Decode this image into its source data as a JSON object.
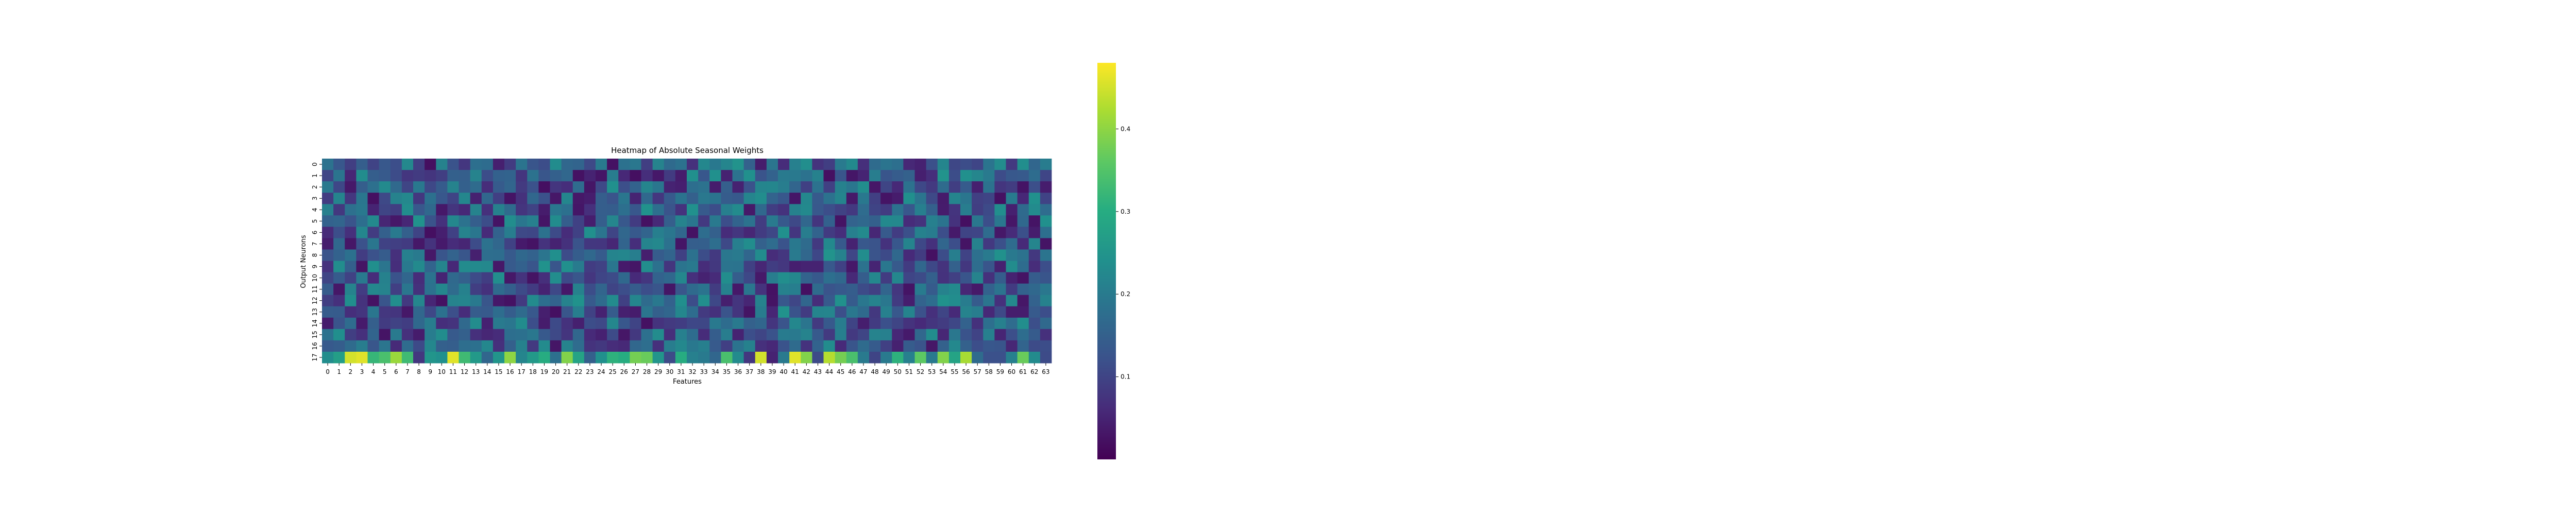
{
  "chart_data": {
    "type": "heatmap",
    "title": "Heatmap of Absolute Seasonal Weights",
    "xlabel": "Features",
    "ylabel": "Output Neurons",
    "x_tick_labels": [
      "0",
      "1",
      "2",
      "3",
      "4",
      "5",
      "6",
      "7",
      "8",
      "9",
      "10",
      "11",
      "12",
      "13",
      "14",
      "15",
      "16",
      "17",
      "18",
      "19",
      "20",
      "21",
      "22",
      "23",
      "24",
      "25",
      "26",
      "27",
      "28",
      "29",
      "30",
      "31",
      "32",
      "33",
      "34",
      "35",
      "36",
      "37",
      "38",
      "39",
      "40",
      "41",
      "42",
      "43",
      "44",
      "45",
      "46",
      "47",
      "48",
      "49",
      "50",
      "51",
      "52",
      "53",
      "54",
      "55",
      "56",
      "57",
      "58",
      "59",
      "60",
      "61",
      "62",
      "63"
    ],
    "y_tick_labels": [
      "0",
      "1",
      "2",
      "3",
      "4",
      "5",
      "6",
      "7",
      "8",
      "9",
      "10",
      "11",
      "12",
      "13",
      "14",
      "15",
      "16",
      "17"
    ],
    "colorscale": "viridis",
    "colorbar": {
      "min": 0.0,
      "max": 0.48,
      "ticks": [
        0.1,
        0.2,
        0.3,
        0.4
      ],
      "tick_labels": [
        "0.1",
        "0.2",
        "0.3",
        "0.4"
      ]
    },
    "values": [
      [
        0.185,
        0.131,
        0.09,
        0.145,
        0.098,
        0.133,
        0.116,
        0.226,
        0.092,
        0.02,
        0.214,
        0.124,
        0.078,
        0.179,
        0.173,
        0.045,
        0.086,
        0.188,
        0.127,
        0.114,
        0.233,
        0.163,
        0.157,
        0.108,
        0.199,
        0.025,
        0.183,
        0.194,
        0.091,
        0.215,
        0.168,
        0.182,
        0.069,
        0.224,
        0.196,
        0.219,
        0.246,
        0.151,
        0.04,
        0.19,
        0.063,
        0.21,
        0.236,
        0.073,
        0.09,
        0.2,
        0.227,
        0.067,
        0.17,
        0.188,
        0.179,
        0.056,
        0.047,
        0.118,
        0.219,
        0.104,
        0.114,
        0.102,
        0.188,
        0.232,
        0.083,
        0.237,
        0.161,
        0.202
      ],
      [
        0.102,
        0.188,
        0.054,
        0.233,
        0.145,
        0.138,
        0.112,
        0.078,
        0.086,
        0.077,
        0.091,
        0.149,
        0.147,
        0.216,
        0.114,
        0.152,
        0.156,
        0.076,
        0.185,
        0.13,
        0.149,
        0.163,
        0.025,
        0.049,
        0.029,
        0.204,
        0.057,
        0.021,
        0.065,
        0.034,
        0.086,
        0.04,
        0.241,
        0.131,
        0.241,
        0.048,
        0.184,
        0.241,
        0.125,
        0.153,
        0.199,
        0.198,
        0.184,
        0.212,
        0.022,
        0.128,
        0.031,
        0.051,
        0.204,
        0.127,
        0.142,
        0.151,
        0.044,
        0.066,
        0.247,
        0.113,
        0.24,
        0.221,
        0.2,
        0.112,
        0.133,
        0.138,
        0.173,
        0.102
      ],
      [
        0.195,
        0.105,
        0.035,
        0.146,
        0.18,
        0.228,
        0.166,
        0.101,
        0.196,
        0.106,
        0.14,
        0.216,
        0.15,
        0.17,
        0.064,
        0.139,
        0.159,
        0.084,
        0.122,
        0.021,
        0.077,
        0.066,
        0.172,
        0.03,
        0.107,
        0.241,
        0.117,
        0.154,
        0.219,
        0.191,
        0.05,
        0.044,
        0.177,
        0.185,
        0.039,
        0.147,
        0.048,
        0.121,
        0.22,
        0.222,
        0.204,
        0.159,
        0.094,
        0.184,
        0.093,
        0.213,
        0.191,
        0.237,
        0.032,
        0.101,
        0.057,
        0.185,
        0.106,
        0.083,
        0.17,
        0.09,
        0.139,
        0.045,
        0.185,
        0.076,
        0.087,
        0.028,
        0.117,
        0.041
      ],
      [
        0.087,
        0.218,
        0.079,
        0.192,
        0.022,
        0.108,
        0.214,
        0.226,
        0.08,
        0.181,
        0.132,
        0.1,
        0.224,
        0.046,
        0.163,
        0.092,
        0.028,
        0.07,
        0.163,
        0.121,
        0.032,
        0.222,
        0.033,
        0.041,
        0.145,
        0.126,
        0.192,
        0.05,
        0.165,
        0.078,
        0.137,
        0.187,
        0.149,
        0.195,
        0.186,
        0.142,
        0.135,
        0.22,
        0.235,
        0.155,
        0.131,
        0.031,
        0.224,
        0.137,
        0.185,
        0.217,
        0.035,
        0.196,
        0.093,
        0.028,
        0.039,
        0.239,
        0.189,
        0.107,
        0.038,
        0.22,
        0.191,
        0.093,
        0.099,
        0.023,
        0.201,
        0.057,
        0.242,
        0.098
      ],
      [
        0.211,
        0.081,
        0.18,
        0.196,
        0.051,
        0.101,
        0.09,
        0.234,
        0.133,
        0.165,
        0.034,
        0.076,
        0.057,
        0.216,
        0.069,
        0.212,
        0.17,
        0.076,
        0.097,
        0.039,
        0.192,
        0.181,
        0.031,
        0.068,
        0.146,
        0.143,
        0.179,
        0.131,
        0.245,
        0.179,
        0.125,
        0.071,
        0.242,
        0.137,
        0.114,
        0.208,
        0.23,
        0.035,
        0.164,
        0.089,
        0.072,
        0.213,
        0.227,
        0.134,
        0.116,
        0.096,
        0.082,
        0.172,
        0.099,
        0.086,
        0.184,
        0.131,
        0.208,
        0.149,
        0.039,
        0.075,
        0.205,
        0.09,
        0.109,
        0.237,
        0.045,
        0.169,
        0.23,
        0.172
      ],
      [
        0.154,
        0.159,
        0.125,
        0.177,
        0.227,
        0.053,
        0.033,
        0.055,
        0.245,
        0.123,
        0.07,
        0.224,
        0.184,
        0.146,
        0.114,
        0.027,
        0.234,
        0.191,
        0.211,
        0.029,
        0.233,
        0.145,
        0.095,
        0.042,
        0.145,
        0.221,
        0.133,
        0.086,
        0.023,
        0.058,
        0.147,
        0.215,
        0.191,
        0.082,
        0.198,
        0.116,
        0.156,
        0.185,
        0.087,
        0.2,
        0.136,
        0.107,
        0.162,
        0.077,
        0.152,
        0.027,
        0.155,
        0.164,
        0.15,
        0.227,
        0.226,
        0.062,
        0.074,
        0.21,
        0.187,
        0.072,
        0.021,
        0.193,
        0.115,
        0.195,
        0.032,
        0.164,
        0.028,
        0.241
      ],
      [
        0.061,
        0.116,
        0.069,
        0.222,
        0.087,
        0.149,
        0.2,
        0.15,
        0.1,
        0.021,
        0.044,
        0.095,
        0.216,
        0.192,
        0.061,
        0.153,
        0.205,
        0.107,
        0.104,
        0.184,
        0.111,
        0.063,
        0.095,
        0.241,
        0.189,
        0.101,
        0.162,
        0.136,
        0.158,
        0.209,
        0.192,
        0.162,
        0.025,
        0.175,
        0.15,
        0.062,
        0.078,
        0.055,
        0.085,
        0.104,
        0.24,
        0.078,
        0.205,
        0.156,
        0.086,
        0.066,
        0.211,
        0.228,
        0.055,
        0.137,
        0.088,
        0.118,
        0.213,
        0.203,
        0.115,
        0.036,
        0.1,
        0.102,
        0.172,
        0.033,
        0.061,
        0.118,
        0.041,
        0.179
      ],
      [
        0.041,
        0.163,
        0.032,
        0.122,
        0.192,
        0.096,
        0.092,
        0.086,
        0.033,
        0.073,
        0.037,
        0.063,
        0.053,
        0.112,
        0.185,
        0.163,
        0.097,
        0.037,
        0.026,
        0.074,
        0.048,
        0.07,
        0.125,
        0.08,
        0.078,
        0.055,
        0.158,
        0.066,
        0.218,
        0.226,
        0.183,
        0.029,
        0.145,
        0.148,
        0.176,
        0.108,
        0.209,
        0.234,
        0.151,
        0.172,
        0.123,
        0.196,
        0.17,
        0.082,
        0.227,
        0.138,
        0.048,
        0.134,
        0.126,
        0.072,
        0.131,
        0.218,
        0.106,
        0.07,
        0.16,
        0.115,
        0.027,
        0.214,
        0.083,
        0.118,
        0.172,
        0.059,
        0.219,
        0.028
      ],
      [
        0.126,
        0.154,
        0.181,
        0.088,
        0.121,
        0.141,
        0.069,
        0.211,
        0.199,
        0.033,
        0.128,
        0.155,
        0.13,
        0.045,
        0.176,
        0.175,
        0.138,
        0.164,
        0.153,
        0.189,
        0.238,
        0.112,
        0.143,
        0.165,
        0.14,
        0.218,
        0.222,
        0.206,
        0.043,
        0.141,
        0.158,
        0.094,
        0.183,
        0.113,
        0.082,
        0.194,
        0.2,
        0.161,
        0.233,
        0.064,
        0.078,
        0.2,
        0.163,
        0.105,
        0.246,
        0.214,
        0.103,
        0.235,
        0.125,
        0.109,
        0.165,
        0.06,
        0.087,
        0.023,
        0.114,
        0.207,
        0.098,
        0.18,
        0.2,
        0.243,
        0.198,
        0.185,
        0.081,
        0.188
      ],
      [
        0.072,
        0.235,
        0.148,
        0.027,
        0.238,
        0.19,
        0.066,
        0.197,
        0.229,
        0.158,
        0.218,
        0.057,
        0.231,
        0.229,
        0.226,
        0.033,
        0.138,
        0.152,
        0.128,
        0.245,
        0.127,
        0.241,
        0.201,
        0.088,
        0.097,
        0.192,
        0.037,
        0.03,
        0.234,
        0.183,
        0.076,
        0.188,
        0.198,
        0.064,
        0.081,
        0.188,
        0.187,
        0.094,
        0.055,
        0.089,
        0.079,
        0.044,
        0.05,
        0.05,
        0.134,
        0.095,
        0.034,
        0.185,
        0.051,
        0.193,
        0.137,
        0.085,
        0.162,
        0.106,
        0.074,
        0.151,
        0.08,
        0.175,
        0.127,
        0.046,
        0.233,
        0.173,
        0.064,
        0.116
      ],
      [
        0.101,
        0.14,
        0.096,
        0.198,
        0.063,
        0.212,
        0.123,
        0.161,
        0.064,
        0.187,
        0.051,
        0.166,
        0.15,
        0.11,
        0.089,
        0.237,
        0.033,
        0.073,
        0.027,
        0.067,
        0.234,
        0.109,
        0.13,
        0.078,
        0.102,
        0.111,
        0.165,
        0.06,
        0.078,
        0.154,
        0.164,
        0.224,
        0.069,
        0.048,
        0.061,
        0.234,
        0.143,
        0.106,
        0.035,
        0.205,
        0.236,
        0.223,
        0.155,
        0.136,
        0.178,
        0.164,
        0.058,
        0.144,
        0.223,
        0.087,
        0.224,
        0.102,
        0.111,
        0.149,
        0.072,
        0.093,
        0.128,
        0.216,
        0.07,
        0.144,
        0.048,
        0.027,
        0.142,
        0.127
      ],
      [
        0.141,
        0.032,
        0.216,
        0.088,
        0.223,
        0.216,
        0.092,
        0.192,
        0.07,
        0.185,
        0.223,
        0.17,
        0.213,
        0.09,
        0.07,
        0.17,
        0.148,
        0.11,
        0.085,
        0.049,
        0.106,
        0.034,
        0.214,
        0.113,
        0.159,
        0.099,
        0.115,
        0.141,
        0.116,
        0.127,
        0.03,
        0.129,
        0.168,
        0.187,
        0.087,
        0.212,
        0.034,
        0.192,
        0.073,
        0.025,
        0.213,
        0.206,
        0.022,
        0.171,
        0.125,
        0.135,
        0.144,
        0.11,
        0.093,
        0.159,
        0.079,
        0.028,
        0.201,
        0.139,
        0.214,
        0.228,
        0.055,
        0.035,
        0.154,
        0.188,
        0.086,
        0.154,
        0.165,
        0.194
      ],
      [
        0.091,
        0.068,
        0.239,
        0.074,
        0.025,
        0.128,
        0.236,
        0.083,
        0.221,
        0.054,
        0.023,
        0.215,
        0.219,
        0.198,
        0.13,
        0.034,
        0.024,
        0.084,
        0.23,
        0.177,
        0.155,
        0.215,
        0.245,
        0.137,
        0.171,
        0.23,
        0.094,
        0.222,
        0.17,
        0.196,
        0.153,
        0.238,
        0.113,
        0.237,
        0.106,
        0.043,
        0.076,
        0.053,
        0.214,
        0.027,
        0.131,
        0.103,
        0.16,
        0.064,
        0.138,
        0.243,
        0.139,
        0.193,
        0.215,
        0.194,
        0.086,
        0.042,
        0.155,
        0.175,
        0.244,
        0.234,
        0.203,
        0.14,
        0.189,
        0.068,
        0.226,
        0.032,
        0.154,
        0.214
      ],
      [
        0.142,
        0.14,
        0.065,
        0.076,
        0.191,
        0.079,
        0.076,
        0.033,
        0.163,
        0.106,
        0.182,
        0.117,
        0.062,
        0.142,
        0.137,
        0.174,
        0.143,
        0.17,
        0.134,
        0.043,
        0.022,
        0.129,
        0.206,
        0.097,
        0.048,
        0.141,
        0.045,
        0.039,
        0.189,
        0.15,
        0.161,
        0.224,
        0.173,
        0.084,
        0.07,
        0.126,
        0.077,
        0.027,
        0.202,
        0.054,
        0.245,
        0.123,
        0.085,
        0.218,
        0.22,
        0.117,
        0.194,
        0.168,
        0.081,
        0.211,
        0.133,
        0.218,
        0.121,
        0.069,
        0.101,
        0.059,
        0.216,
        0.205,
        0.057,
        0.108,
        0.041,
        0.041,
        0.138,
        0.116
      ],
      [
        0.039,
        0.125,
        0.172,
        0.037,
        0.147,
        0.086,
        0.097,
        0.089,
        0.164,
        0.204,
        0.065,
        0.073,
        0.166,
        0.232,
        0.047,
        0.199,
        0.192,
        0.233,
        0.115,
        0.039,
        0.109,
        0.071,
        0.045,
        0.113,
        0.108,
        0.223,
        0.132,
        0.1,
        0.023,
        0.073,
        0.084,
        0.089,
        0.105,
        0.104,
        0.197,
        0.173,
        0.199,
        0.151,
        0.16,
        0.077,
        0.125,
        0.223,
        0.189,
        0.084,
        0.135,
        0.205,
        0.099,
        0.042,
        0.085,
        0.119,
        0.101,
        0.074,
        0.06,
        0.077,
        0.087,
        0.104,
        0.153,
        0.07,
        0.178,
        0.21,
        0.172,
        0.237,
        0.117,
        0.167
      ],
      [
        0.184,
        0.238,
        0.09,
        0.068,
        0.157,
        0.028,
        0.199,
        0.068,
        0.039,
        0.202,
        0.234,
        0.137,
        0.149,
        0.069,
        0.055,
        0.063,
        0.177,
        0.181,
        0.193,
        0.135,
        0.107,
        0.077,
        0.162,
        0.06,
        0.047,
        0.11,
        0.032,
        0.081,
        0.18,
        0.232,
        0.067,
        0.211,
        0.173,
        0.062,
        0.143,
        0.205,
        0.049,
        0.115,
        0.101,
        0.124,
        0.201,
        0.198,
        0.216,
        0.138,
        0.084,
        0.208,
        0.082,
        0.101,
        0.215,
        0.21,
        0.057,
        0.037,
        0.163,
        0.233,
        0.055,
        0.194,
        0.123,
        0.098,
        0.21,
        0.052,
        0.117,
        0.174,
        0.139,
        0.068
      ],
      [
        0.136,
        0.143,
        0.171,
        0.205,
        0.13,
        0.19,
        0.059,
        0.172,
        0.109,
        0.223,
        0.149,
        0.145,
        0.176,
        0.181,
        0.223,
        0.069,
        0.15,
        0.213,
        0.082,
        0.23,
        0.03,
        0.215,
        0.172,
        0.074,
        0.081,
        0.064,
        0.058,
        0.162,
        0.176,
        0.068,
        0.204,
        0.226,
        0.196,
        0.209,
        0.137,
        0.092,
        0.186,
        0.212,
        0.069,
        0.057,
        0.124,
        0.17,
        0.071,
        0.156,
        0.233,
        0.06,
        0.127,
        0.171,
        0.139,
        0.093,
        0.046,
        0.142,
        0.126,
        0.032,
        0.151,
        0.225,
        0.151,
        0.115,
        0.131,
        0.127,
        0.055,
        0.158,
        0.111,
        0.114
      ],
      [
        0.235,
        0.27,
        0.45,
        0.46,
        0.32,
        0.34,
        0.41,
        0.33,
        0.08,
        0.25,
        0.24,
        0.46,
        0.33,
        0.26,
        0.16,
        0.25,
        0.4,
        0.22,
        0.26,
        0.3,
        0.18,
        0.39,
        0.28,
        0.15,
        0.24,
        0.31,
        0.3,
        0.38,
        0.37,
        0.25,
        0.11,
        0.3,
        0.21,
        0.2,
        0.16,
        0.34,
        0.23,
        0.08,
        0.45,
        0.05,
        0.2,
        0.46,
        0.39,
        0.11,
        0.43,
        0.38,
        0.34,
        0.2,
        0.1,
        0.2,
        0.31,
        0.21,
        0.36,
        0.2,
        0.39,
        0.28,
        0.42,
        0.17,
        0.12,
        0.12,
        0.21,
        0.37,
        0.23,
        0.11
      ]
    ]
  }
}
